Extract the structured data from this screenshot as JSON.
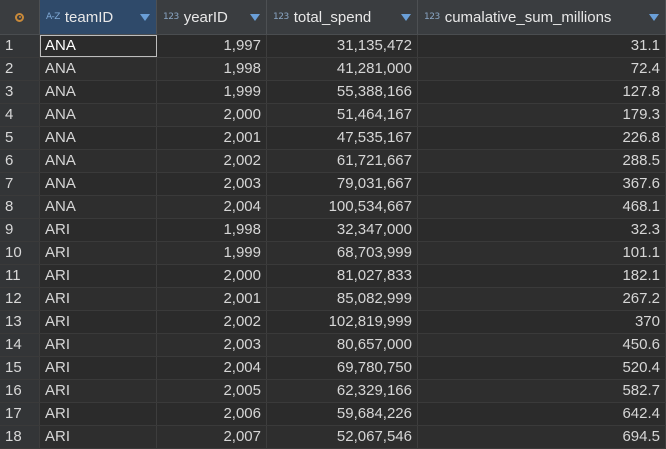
{
  "columns": [
    {
      "label": "teamID",
      "type_badge": "A-Z"
    },
    {
      "label": "yearID",
      "type_badge": "123"
    },
    {
      "label": "total_spend",
      "type_badge": "123"
    },
    {
      "label": "cumalative_sum_millions",
      "type_badge": "123"
    }
  ],
  "rows": [
    {
      "n": "1",
      "teamID": "ANA",
      "yearID": "1,997",
      "total_spend": "31,135,472",
      "cum": "31.1"
    },
    {
      "n": "2",
      "teamID": "ANA",
      "yearID": "1,998",
      "total_spend": "41,281,000",
      "cum": "72.4"
    },
    {
      "n": "3",
      "teamID": "ANA",
      "yearID": "1,999",
      "total_spend": "55,388,166",
      "cum": "127.8"
    },
    {
      "n": "4",
      "teamID": "ANA",
      "yearID": "2,000",
      "total_spend": "51,464,167",
      "cum": "179.3"
    },
    {
      "n": "5",
      "teamID": "ANA",
      "yearID": "2,001",
      "total_spend": "47,535,167",
      "cum": "226.8"
    },
    {
      "n": "6",
      "teamID": "ANA",
      "yearID": "2,002",
      "total_spend": "61,721,667",
      "cum": "288.5"
    },
    {
      "n": "7",
      "teamID": "ANA",
      "yearID": "2,003",
      "total_spend": "79,031,667",
      "cum": "367.6"
    },
    {
      "n": "8",
      "teamID": "ANA",
      "yearID": "2,004",
      "total_spend": "100,534,667",
      "cum": "468.1"
    },
    {
      "n": "9",
      "teamID": "ARI",
      "yearID": "1,998",
      "total_spend": "32,347,000",
      "cum": "32.3"
    },
    {
      "n": "10",
      "teamID": "ARI",
      "yearID": "1,999",
      "total_spend": "68,703,999",
      "cum": "101.1"
    },
    {
      "n": "11",
      "teamID": "ARI",
      "yearID": "2,000",
      "total_spend": "81,027,833",
      "cum": "182.1"
    },
    {
      "n": "12",
      "teamID": "ARI",
      "yearID": "2,001",
      "total_spend": "85,082,999",
      "cum": "267.2"
    },
    {
      "n": "13",
      "teamID": "ARI",
      "yearID": "2,002",
      "total_spend": "102,819,999",
      "cum": "370"
    },
    {
      "n": "14",
      "teamID": "ARI",
      "yearID": "2,003",
      "total_spend": "80,657,000",
      "cum": "450.6"
    },
    {
      "n": "15",
      "teamID": "ARI",
      "yearID": "2,004",
      "total_spend": "69,780,750",
      "cum": "520.4"
    },
    {
      "n": "16",
      "teamID": "ARI",
      "yearID": "2,005",
      "total_spend": "62,329,166",
      "cum": "582.7"
    },
    {
      "n": "17",
      "teamID": "ARI",
      "yearID": "2,006",
      "total_spend": "59,684,226",
      "cum": "642.4"
    },
    {
      "n": "18",
      "teamID": "ARI",
      "yearID": "2,007",
      "total_spend": "52,067,546",
      "cum": "694.5"
    }
  ],
  "selected_cell": {
    "row": 0,
    "column": "teamID"
  },
  "colors": {
    "background": "#2b2b2b",
    "header_background": "#3a3d40",
    "sorted_header": "#2f4a6a",
    "accent": "#6a9fd8",
    "corner_icon": "#c98a3a"
  }
}
